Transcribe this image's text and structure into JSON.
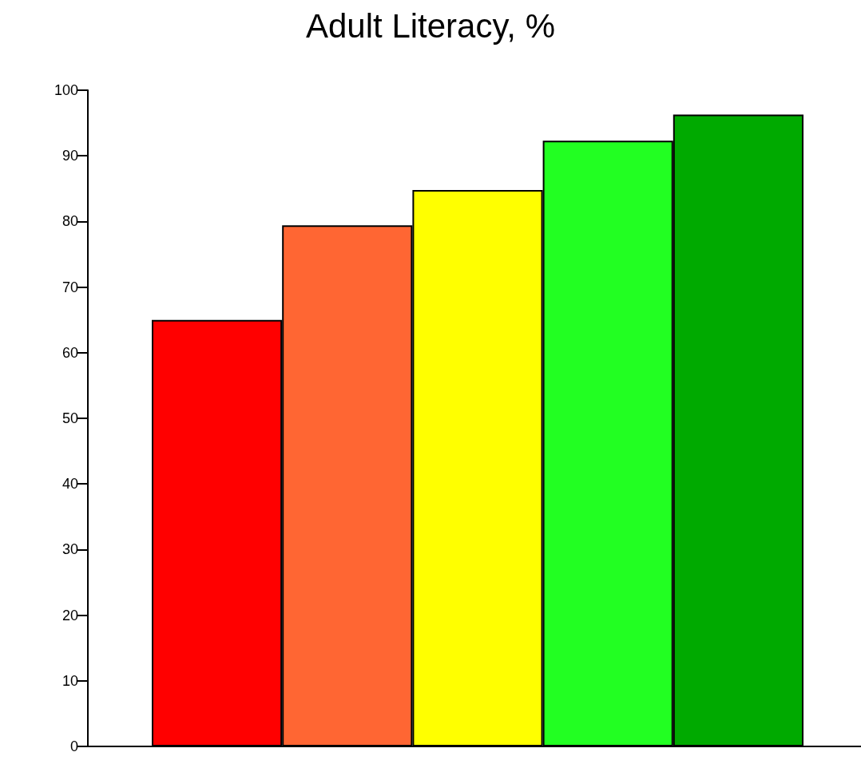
{
  "chart_data": {
    "type": "bar",
    "title": "Adult Literacy, %",
    "categories": [
      null,
      null,
      null,
      null,
      null
    ],
    "values": [
      65,
      79.4,
      84.8,
      92.3,
      96.3
    ],
    "colors": [
      "#ff0000",
      "#ff6633",
      "#ffff00",
      "#22ff22",
      "#00aa00"
    ],
    "ylim": [
      0,
      100
    ],
    "yticks": [
      0,
      10,
      20,
      30,
      40,
      50,
      60,
      70,
      80,
      90,
      100
    ],
    "grid": false
  }
}
